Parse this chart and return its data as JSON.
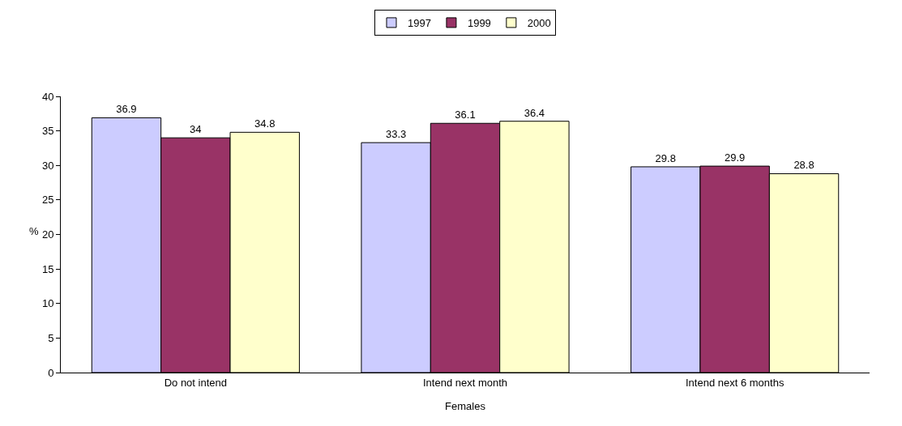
{
  "chart_data": {
    "type": "bar",
    "xlabel": "Females",
    "ylabel": "%",
    "categories": [
      "Do not intend",
      "Intend next month",
      "Intend next 6 months"
    ],
    "series": [
      {
        "name": "1997",
        "color": "#ccccff",
        "values": [
          36.9,
          33.3,
          29.8
        ]
      },
      {
        "name": "1999",
        "color": "#993366",
        "values": [
          34,
          36.1,
          29.9
        ]
      },
      {
        "name": "2000",
        "color": "#ffffcc",
        "values": [
          34.8,
          36.4,
          28.8
        ]
      }
    ],
    "ylim": [
      0,
      40
    ],
    "yticks": [
      0,
      5,
      10,
      15,
      20,
      25,
      30,
      35,
      40
    ],
    "grid": false,
    "legend": "top",
    "data_labels": true
  }
}
